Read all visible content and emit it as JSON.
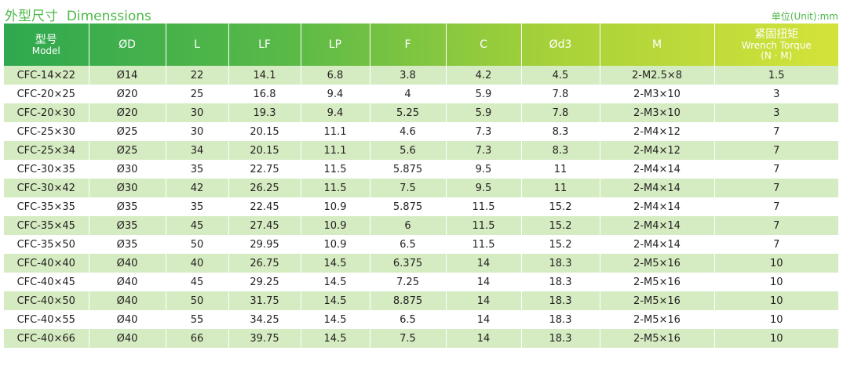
{
  "title": {
    "zh": "外型尺寸",
    "en": "Dimenssions",
    "unit": "单位(Unit):mm"
  },
  "colors": {
    "header_gradient": [
      "#2fa84f",
      "#58b947",
      "#a9d239",
      "#d4e33a"
    ],
    "title_green": "#4cb848",
    "stripe": "#d5ebc1"
  },
  "columns": [
    {
      "zh": "型号",
      "en": "Model"
    },
    {
      "en": "ØD"
    },
    {
      "en": "L"
    },
    {
      "en": "LF"
    },
    {
      "en": "LP"
    },
    {
      "en": "F"
    },
    {
      "en": "C"
    },
    {
      "en": "Ød3"
    },
    {
      "en": "M"
    },
    {
      "zh": "紧固扭矩",
      "en": "Wrench Torque",
      "unit": "(N · M)"
    }
  ],
  "rows": [
    [
      "CFC-14×22",
      "Ø14",
      "22",
      "14.1",
      "6.8",
      "3.8",
      "4.2",
      "4.5",
      "2-M2.5×8",
      "1.5"
    ],
    [
      "CFC-20×25",
      "Ø20",
      "25",
      "16.8",
      "9.4",
      "4",
      "5.9",
      "7.8",
      "2-M3×10",
      "3"
    ],
    [
      "CFC-20×30",
      "Ø20",
      "30",
      "19.3",
      "9.4",
      "5.25",
      "5.9",
      "7.8",
      "2-M3×10",
      "3"
    ],
    [
      "CFC-25×30",
      "Ø25",
      "30",
      "20.15",
      "11.1",
      "4.6",
      "7.3",
      "8.3",
      "2-M4×12",
      "7"
    ],
    [
      "CFC-25×34",
      "Ø25",
      "34",
      "20.15",
      "11.1",
      "5.6",
      "7.3",
      "8.3",
      "2-M4×12",
      "7"
    ],
    [
      "CFC-30×35",
      "Ø30",
      "35",
      "22.75",
      "11.5",
      "5.875",
      "9.5",
      "11",
      "2-M4×14",
      "7"
    ],
    [
      "CFC-30×42",
      "Ø30",
      "42",
      "26.25",
      "11.5",
      "7.5",
      "9.5",
      "11",
      "2-M4×14",
      "7"
    ],
    [
      "CFC-35×35",
      "Ø35",
      "35",
      "22.45",
      "10.9",
      "5.875",
      "11.5",
      "15.2",
      "2-M4×14",
      "7"
    ],
    [
      "CFC-35×45",
      "Ø35",
      "45",
      "27.45",
      "10.9",
      "6",
      "11.5",
      "15.2",
      "2-M4×14",
      "7"
    ],
    [
      "CFC-35×50",
      "Ø35",
      "50",
      "29.95",
      "10.9",
      "6.5",
      "11.5",
      "15.2",
      "2-M4×14",
      "7"
    ],
    [
      "CFC-40×40",
      "Ø40",
      "40",
      "26.75",
      "14.5",
      "6.375",
      "14",
      "18.3",
      "2-M5×16",
      "10"
    ],
    [
      "CFC-40×45",
      "Ø40",
      "45",
      "29.25",
      "14.5",
      "7.25",
      "14",
      "18.3",
      "2-M5×16",
      "10"
    ],
    [
      "CFC-40×50",
      "Ø40",
      "50",
      "31.75",
      "14.5",
      "8.875",
      "14",
      "18.3",
      "2-M5×16",
      "10"
    ],
    [
      "CFC-40×55",
      "Ø40",
      "55",
      "34.25",
      "14.5",
      "6.5",
      "14",
      "18.3",
      "2-M5×16",
      "10"
    ],
    [
      "CFC-40×66",
      "Ø40",
      "66",
      "39.75",
      "14.5",
      "7.5",
      "14",
      "18.3",
      "2-M5×16",
      "10"
    ]
  ]
}
